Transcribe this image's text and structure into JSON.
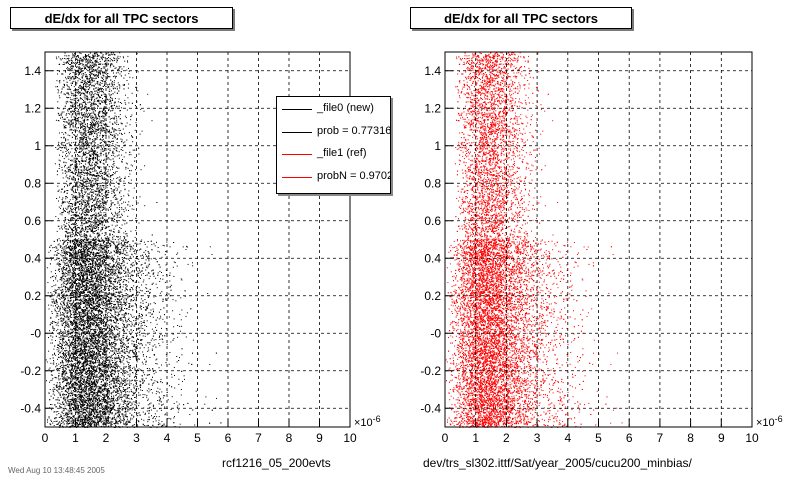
{
  "chart_data": [
    {
      "type": "scatter",
      "title": "dE/dx for all TPC sectors",
      "footer_label": "rcf1216_05_200evts",
      "x_exponent": "×10",
      "x_exponent_power": "-6",
      "xlim": [
        0,
        10
      ],
      "ylim": [
        -0.5,
        1.5
      ],
      "x_ticks": [
        "0",
        "1",
        "2",
        "3",
        "4",
        "5",
        "6",
        "7",
        "8",
        "9",
        "10"
      ],
      "y_ticks": [
        "-0.4",
        "-0.2",
        "-0",
        "0.2",
        "0.4",
        "0.6",
        "0.8",
        "1",
        "1.2",
        "1.4"
      ],
      "grid": true,
      "color": "#000000",
      "legend": [
        {
          "label": "_file0 (new)",
          "color": "#000000"
        },
        {
          "label": "prob = 0.773169",
          "color": "#000000"
        },
        {
          "label": "_file1 (ref)",
          "color": "#ff0000"
        },
        {
          "label": "probN = 0.970290",
          "color": "#ff0000"
        }
      ],
      "legend_placement": "top-right"
    },
    {
      "type": "scatter",
      "title": "dE/dx for all TPC sectors",
      "footer_label": "dev/trs_sl302.ittf/Sat/year_2005/cucu200_minbias/",
      "x_exponent": "×10",
      "x_exponent_power": "-6",
      "xlim": [
        0,
        10
      ],
      "ylim": [
        -0.5,
        1.5
      ],
      "x_ticks": [
        "0",
        "1",
        "2",
        "3",
        "4",
        "5",
        "6",
        "7",
        "8",
        "9",
        "10"
      ],
      "y_ticks": [
        "-0.4",
        "-0.2",
        "-0",
        "0.2",
        "0.4",
        "0.6",
        "0.8",
        "1",
        "1.2",
        "1.4"
      ],
      "grid": true,
      "color": "#ff0000"
    }
  ],
  "date_stamp": "Wed Aug 10 13:48:45 2005"
}
